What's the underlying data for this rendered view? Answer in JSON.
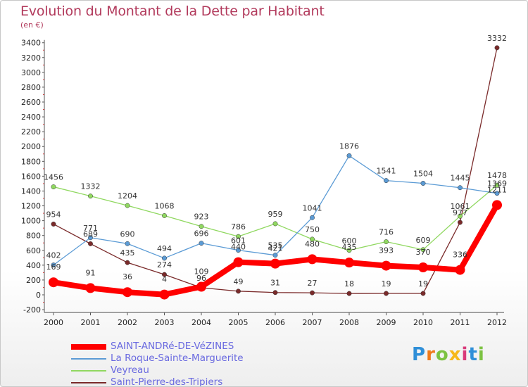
{
  "title": "Evolution du Montant de la Dette par Habitant",
  "subtitle": "(en €)",
  "logo_text": "Proxiti",
  "chart_data": {
    "type": "line",
    "title": "Evolution du Montant de la Dette par Habitant",
    "subtitle": "(en €)",
    "x": [
      "2000",
      "2001",
      "2002",
      "2003",
      "2004",
      "2005",
      "2006",
      "2007",
      "2008",
      "2009",
      "2010",
      "2011",
      "2012"
    ],
    "ylim": [
      -200,
      3400
    ],
    "yticks": [
      -200,
      0,
      200,
      400,
      600,
      800,
      1000,
      1200,
      1400,
      1600,
      1800,
      2000,
      2200,
      2400,
      2600,
      2800,
      3000,
      3200,
      3400
    ],
    "grid": false,
    "legend_position": "bottom-left",
    "series": [
      {
        "name": "SAINT-ANDRé-DE-VéZINES",
        "color": "#ff0000",
        "values": [
          169,
          91,
          36,
          4,
          109,
          440,
          421,
          480,
          435,
          393,
          370,
          336,
          1211
        ]
      },
      {
        "name": "La Roque-Sainte-Marguerite",
        "color": "#5b9bd5",
        "values": [
          402,
          771,
          690,
          494,
          696,
          601,
          535,
          1041,
          1876,
          1541,
          1504,
          1445,
          1369
        ]
      },
      {
        "name": "Veyreau",
        "color": "#90d860",
        "values": [
          1456,
          1332,
          1204,
          1068,
          923,
          786,
          959,
          750,
          600,
          716,
          609,
          1061,
          1478
        ]
      },
      {
        "name": "Saint-Pierre-des-Tripiers",
        "color": "#7a2a2a",
        "values": [
          954,
          689,
          435,
          274,
          96,
          49,
          31,
          27,
          18,
          19,
          19,
          977,
          3332
        ]
      }
    ]
  }
}
